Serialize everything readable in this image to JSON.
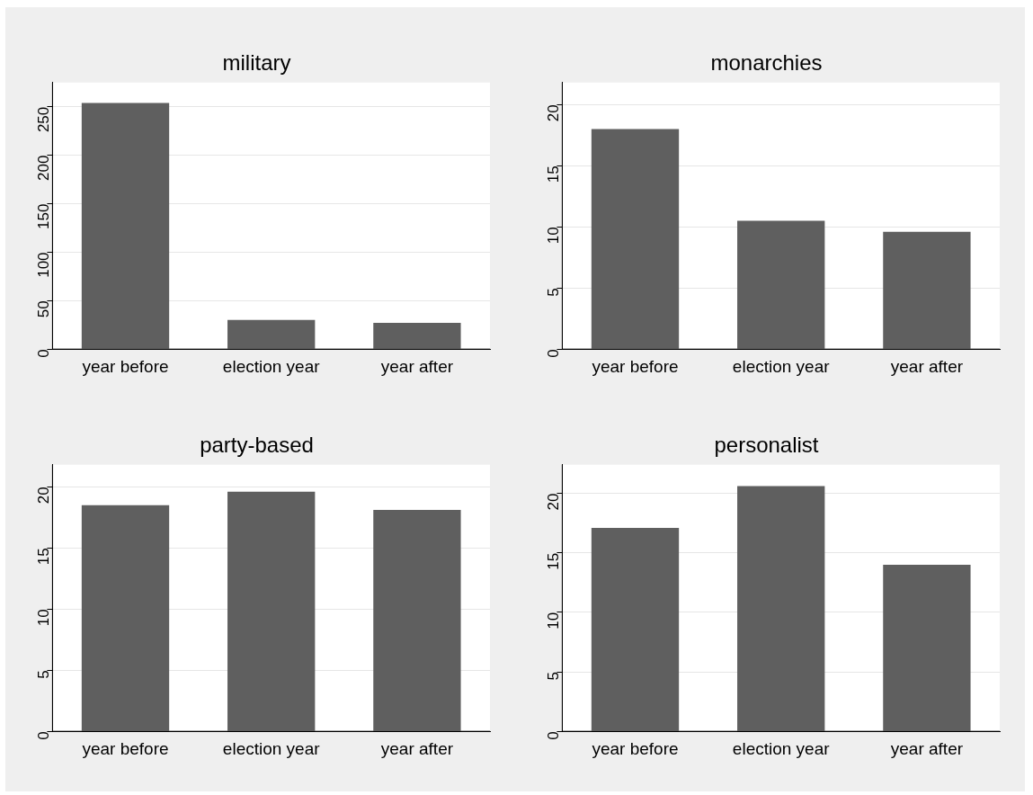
{
  "chart_data": [
    {
      "type": "bar",
      "title": "military",
      "categories": [
        "year before",
        "election year",
        "year after"
      ],
      "values": [
        254,
        30,
        27
      ],
      "color": "#5f5f5f",
      "ylim": [
        0,
        275
      ],
      "yticks": [
        0,
        50,
        100,
        150,
        200,
        250
      ],
      "grid": "y"
    },
    {
      "type": "bar",
      "title": "monarchies",
      "categories": [
        "year before",
        "election year",
        "year after"
      ],
      "values": [
        18,
        10.5,
        9.6
      ],
      "color": "#5f5f5f",
      "ylim": [
        0,
        21.8
      ],
      "yticks": [
        0,
        5,
        10,
        15,
        20
      ],
      "grid": "y"
    },
    {
      "type": "bar",
      "title": "party-based",
      "categories": [
        "year before",
        "election year",
        "year after"
      ],
      "values": [
        18.5,
        19.6,
        18.1
      ],
      "color": "#5f5f5f",
      "ylim": [
        0,
        21.8
      ],
      "yticks": [
        0,
        5,
        10,
        15,
        20
      ],
      "grid": "y"
    },
    {
      "type": "bar",
      "title": "personalist",
      "categories": [
        "year before",
        "election year",
        "year after"
      ],
      "values": [
        17.1,
        20.6,
        14
      ],
      "color": "#5f5f5f",
      "ylim": [
        0,
        22.4
      ],
      "yticks": [
        0,
        5,
        10,
        15,
        20
      ],
      "grid": "y"
    }
  ]
}
